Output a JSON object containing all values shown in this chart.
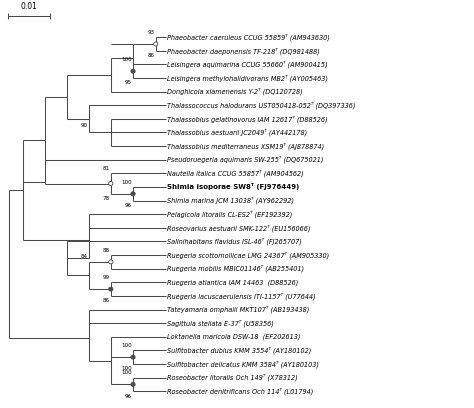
{
  "taxa": [
    {
      "name": "Phaeobacter caeruleus CCUG 55859ᵀ (AM943630)",
      "bold": false
    },
    {
      "name": "Phaeobacter daeponensis TF-218ᵀ (DQ981488)",
      "bold": false
    },
    {
      "name": "Leisingera aquimarina CCUG 55660ᵀ (AM900415)",
      "bold": false
    },
    {
      "name": "Leisingera methylohalidivorans MB2ᵀ (AY005463)",
      "bold": false
    },
    {
      "name": "Donghicola xiamenensis Y-2ᵀ (DQ120728)",
      "bold": false
    },
    {
      "name": "Thalassococcus halodurans UST050418-052ᵀ (DQ397336)",
      "bold": false
    },
    {
      "name": "Thalassobius gelatinovorus IAM 12617ᵀ (D88526)",
      "bold": false
    },
    {
      "name": "Thalassobius aestuarii JC2049ᵀ (AY442178)",
      "bold": false
    },
    {
      "name": "Thalassobius mediterraneus XSM19ᵀ (AJ878874)",
      "bold": false
    },
    {
      "name": "Pseudoruegeria aquimaris SW-255ᵀ (DQ675021)",
      "bold": false
    },
    {
      "name": "Nautella italica CCUG 55857ᵀ (AM904562)",
      "bold": false
    },
    {
      "name": "Shimia isoporae SW8ᵀ (FJ976449)",
      "bold": true
    },
    {
      "name": "Shimia marina JCM 13038ᵀ (AY962292)",
      "bold": false
    },
    {
      "name": "Pelagicola litoralis CL-ES2ᵀ (EF192392)",
      "bold": false
    },
    {
      "name": "Roseovarius aestuarii SMK-122ᵀ (EU156066)",
      "bold": false
    },
    {
      "name": "Salinihabitans flavidus ISL-46ᵀ (FJ265707)",
      "bold": false
    },
    {
      "name": "Ruegeria scottomollicae LMG 24367ᵀ (AM905330)",
      "bold": false
    },
    {
      "name": "Ruegeria mobilis MBIC01146ᵀ (AB255401)",
      "bold": false
    },
    {
      "name": "Ruegeria atlantica IAM 14463  (D88526)",
      "bold": false
    },
    {
      "name": "Ruegeria lacuscaerulensis ITI-1157ᵀ (U77644)",
      "bold": false
    },
    {
      "name": "Tateyamaria omphalii MKT107ᵀ (AB193438)",
      "bold": false
    },
    {
      "name": "Sagittula stellata E-37ᵀ (U58356)",
      "bold": false
    },
    {
      "name": "Loktanella maricola DSW-18  (EF202613)",
      "bold": false
    },
    {
      "name": "Sulfitobacter dubius KMM 3554ᵀ (AY180102)",
      "bold": false
    },
    {
      "name": "Sulfitobacter delicatus KMM 3584ᵀ (AY180103)",
      "bold": false
    },
    {
      "name": "Roseobacter litoralis Och 149ᵀ (X78312)",
      "bold": false
    },
    {
      "name": "Roseobacter denitrificans Och 114ᵀ (L01794)",
      "bold": false
    }
  ],
  "line_color": "#4a4a4a",
  "bg_color": "#ffffff",
  "label_fontsize": 4.7,
  "bold_fontsize": 5.0,
  "bootstrap_fontsize": 4.1
}
